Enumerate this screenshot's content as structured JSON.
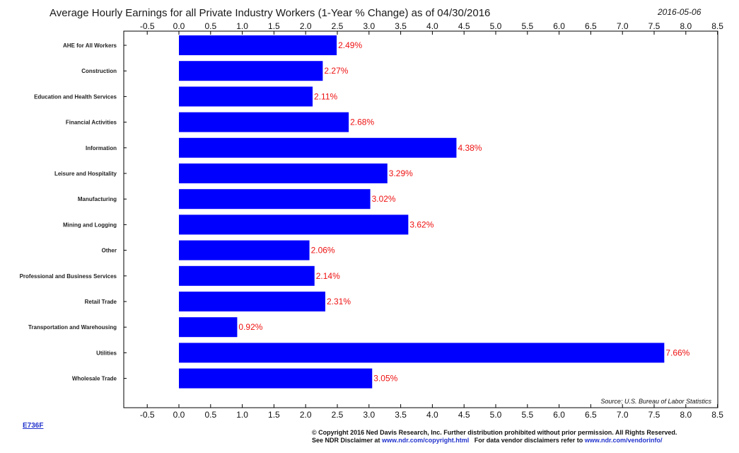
{
  "chart_data": {
    "type": "bar",
    "orientation": "horizontal",
    "title": "Average Hourly Earnings for all Private Industry Workers (1-Year % Change) as of 04/30/2016",
    "date": "2016-05-06",
    "categories": [
      "AHE for All Workers",
      "Construction",
      "Education and Health Services",
      "Financial Activities",
      "Information",
      "Leisure and Hospitality",
      "Manufacturing",
      "Mining and Logging",
      "Other",
      "Professional and Business Services",
      "Retail Trade",
      "Transportation and Warehousing",
      "Utilities",
      "Wholesale Trade"
    ],
    "values": [
      2.49,
      2.27,
      2.11,
      2.68,
      4.38,
      3.29,
      3.02,
      3.62,
      2.06,
      2.14,
      2.31,
      0.92,
      7.66,
      3.05
    ],
    "data_labels": [
      "2.49%",
      "2.27%",
      "2.11%",
      "2.68%",
      "4.38%",
      "3.29%",
      "3.02%",
      "3.62%",
      "2.06%",
      "2.14%",
      "2.31%",
      "0.92%",
      "7.66%",
      "3.05%"
    ],
    "xlim": [
      -0.75,
      8.5
    ],
    "x_ticks": [
      -0.5,
      0.0,
      0.5,
      1.0,
      1.5,
      2.0,
      2.5,
      3.0,
      3.5,
      4.0,
      4.5,
      5.0,
      5.5,
      6.0,
      6.5,
      7.0,
      7.5,
      8.0,
      8.5
    ],
    "x_tick_labels": [
      "-0.5",
      "0.0",
      "0.5",
      "1.0",
      "1.5",
      "2.0",
      "2.5",
      "3.0",
      "3.5",
      "4.0",
      "4.5",
      "5.0",
      "5.5",
      "6.0",
      "6.5",
      "7.0",
      "7.5",
      "8.0",
      "8.5"
    ],
    "bar_color": "#0000ff",
    "label_color": "#ee1111",
    "grid": false,
    "source": "Source: U.S. Bureau of Labor Statistics"
  },
  "footer": {
    "code": "E736F",
    "copyright_line1": "© Copyright 2016 Ned Davis Research, Inc. Further distribution prohibited without prior permission. All Rights Reserved.",
    "disclaimer_prefix": "See NDR Disclaimer at ",
    "disclaimer_link": "www.ndr.com/copyright.html",
    "vendor_prefix": "   For data vendor disclaimers refer to ",
    "vendor_link": "www.ndr.com/vendorinfo/"
  }
}
